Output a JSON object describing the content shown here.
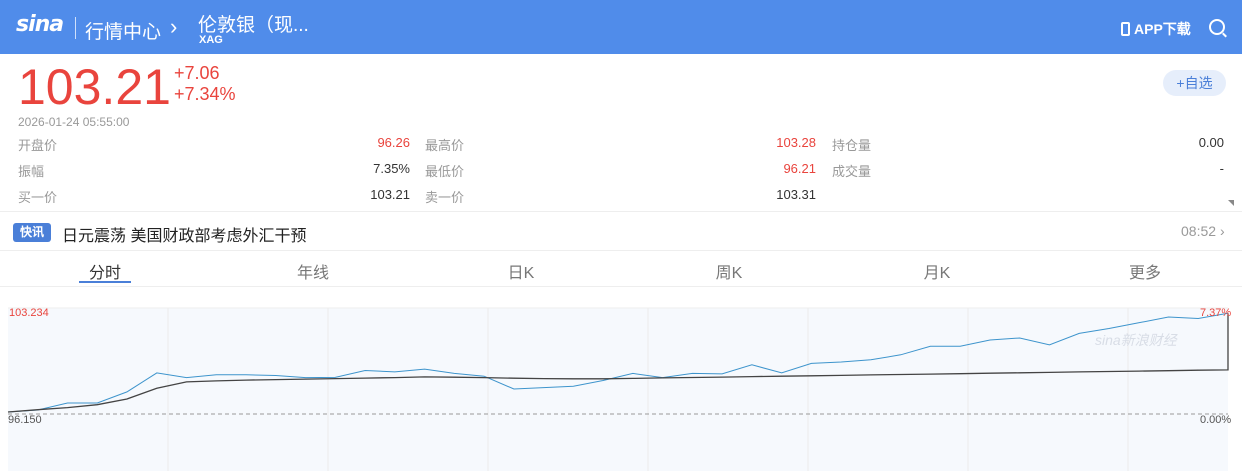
{
  "header": {
    "logo": "sina",
    "nav": "行情中心",
    "title": "伦敦银（现...",
    "symbol": "XAG",
    "app_download": "APP下载",
    "icons": {
      "phone": "phone-icon",
      "search": "search-icon",
      "chevron": "chevron-right-icon"
    }
  },
  "quote": {
    "price": "103.21",
    "change": "+7.06",
    "change_pct": "+7.34%",
    "datetime": "2026-01-24   05:55:00",
    "add_watchlist": "+自选"
  },
  "stats": [
    {
      "label": "开盘价",
      "value": "96.26",
      "color": "red"
    },
    {
      "label": "最高价",
      "value": "103.28",
      "color": "red"
    },
    {
      "label": "持仓量",
      "value": "0.00",
      "color": "normal"
    },
    {
      "label": "振幅",
      "value": "7.35%",
      "color": "normal"
    },
    {
      "label": "最低价",
      "value": "96.21",
      "color": "red"
    },
    {
      "label": "成交量",
      "value": "-",
      "color": "normal"
    },
    {
      "label": "买一价",
      "value": "103.21",
      "color": "normal"
    },
    {
      "label": "卖一价",
      "value": "103.31",
      "color": "normal"
    }
  ],
  "news": {
    "badge": "快讯",
    "headline": "日元震荡 美国财政部考虑外汇干预",
    "time": "08:52"
  },
  "tabs": [
    {
      "label": "分时",
      "active": true
    },
    {
      "label": "年线"
    },
    {
      "label": "日K"
    },
    {
      "label": "周K"
    },
    {
      "label": "月K"
    },
    {
      "label": "更多"
    }
  ],
  "colors": {
    "header": "#508cea",
    "up": "#e9443d",
    "price_line": "#3d94cc",
    "avg_line": "#444444",
    "accent": "#4a7fd8"
  },
  "chart_data": {
    "type": "line",
    "y_top_label": "103.234",
    "y_base_label": "96.150",
    "pct_top_label": "7.37%",
    "pct_base_label": "0.00%",
    "ylim": [
      96.15,
      103.234
    ],
    "base": 96.15,
    "grid": true,
    "watermark": "sina新浪财经",
    "series": [
      {
        "values": [
          96.29,
          96.43,
          96.92,
          96.92,
          97.7,
          99.03,
          98.7,
          98.9,
          98.9,
          98.85,
          98.7,
          98.72,
          99.2,
          99.1,
          99.3,
          99.0,
          98.8,
          97.9,
          98.0,
          98.1,
          98.5,
          99.0,
          98.7,
          99.0,
          98.96,
          99.6,
          99.03,
          99.7,
          99.8,
          99.95,
          100.3,
          100.9,
          100.9,
          101.34,
          101.48,
          101.0,
          101.8,
          102.15,
          102.55,
          102.95,
          102.85,
          103.21
        ]
      },
      {
        "values": [
          96.29,
          96.45,
          96.6,
          96.8,
          97.2,
          97.95,
          98.4,
          98.47,
          98.53,
          98.56,
          98.6,
          98.63,
          98.67,
          98.7,
          98.75,
          98.73,
          98.7,
          98.66,
          98.63,
          98.62,
          98.62,
          98.65,
          98.68,
          98.71,
          98.74,
          98.77,
          98.8,
          98.83,
          98.86,
          98.89,
          98.92,
          98.95,
          98.98,
          99.01,
          99.04,
          99.07,
          99.1,
          99.13,
          99.16,
          99.19,
          99.22,
          99.24
        ]
      }
    ]
  }
}
